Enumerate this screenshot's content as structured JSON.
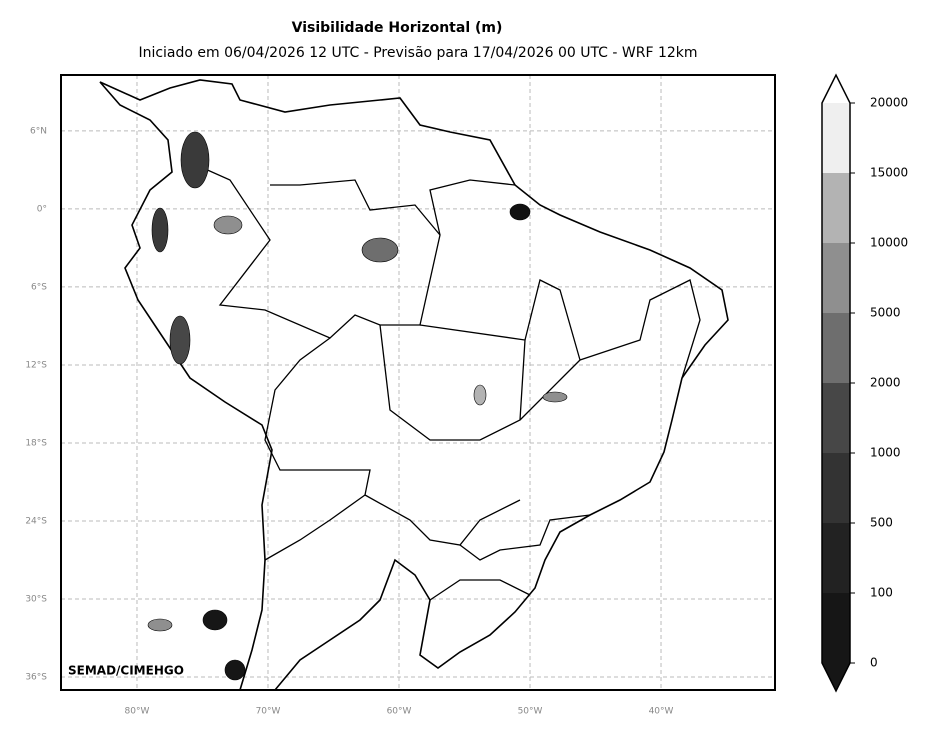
{
  "chart_data": {
    "type": "map",
    "title": "Visibilidade Horizontal (m)",
    "subtitle": "Iniciado em 06/04/2026 12 UTC - Previsão para 17/04/2026 00 UTC - WRF 12km",
    "credit": "SEMAD/CIMEHGO",
    "xlim": [
      -85.8,
      -31.3
    ],
    "ylim": [
      -37,
      10.3
    ],
    "xticks": [
      {
        "value": -80,
        "label": "80°W"
      },
      {
        "value": -70,
        "label": "70°W"
      },
      {
        "value": -60,
        "label": "60°W"
      },
      {
        "value": -50,
        "label": "50°W"
      },
      {
        "value": -40,
        "label": "40°W"
      }
    ],
    "yticks": [
      {
        "value": 6,
        "label": "6°N"
      },
      {
        "value": 0,
        "label": "0°"
      },
      {
        "value": -6,
        "label": "6°S"
      },
      {
        "value": -12,
        "label": "12°S"
      },
      {
        "value": -18,
        "label": "18°S"
      },
      {
        "value": -24,
        "label": "24°S"
      },
      {
        "value": -30,
        "label": "30°S"
      },
      {
        "value": -36,
        "label": "36°S"
      }
    ],
    "grid": true,
    "colorbar": {
      "ticks": [
        0,
        100,
        500,
        1000,
        2000,
        5000,
        10000,
        15000,
        20000
      ],
      "colors": [
        "#161616",
        "#222222",
        "#333333",
        "#474747",
        "#6e6e6e",
        "#8f8f8f",
        "#b3b3b3",
        "#efefef"
      ],
      "under_color": "#161616",
      "over_color": "#ffffff"
    }
  }
}
